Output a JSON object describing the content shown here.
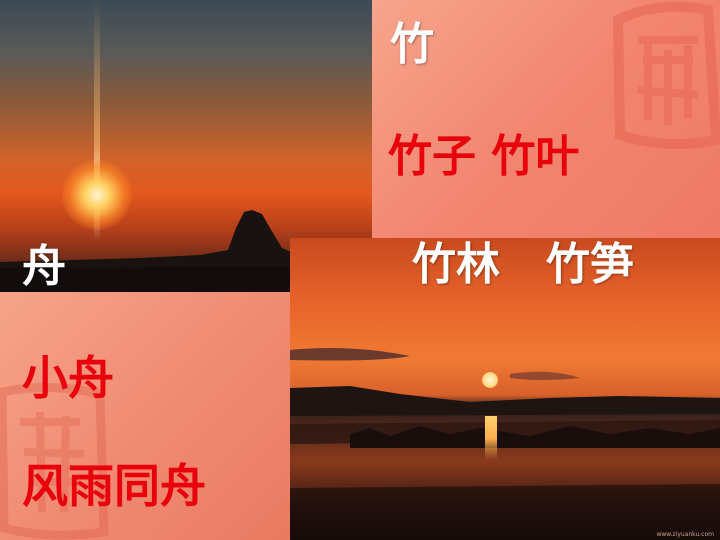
{
  "slide": {
    "word_zhu": "竹",
    "line_zhu_1": "竹子 竹叶",
    "line_zhu_2": "竹林   竹笋",
    "word_zhou": "舟",
    "line_zhou_1": "小舟",
    "line_zhou_2": "风雨同舟",
    "credit": "www.ziyuanku.com"
  },
  "colors": {
    "red_text": "#e8000a",
    "white_text": "#ffffff",
    "pink_panel": "#f28570"
  },
  "decorations": {
    "top_right_seal": "seal-stamp",
    "bottom_left_seal": "seal-stamp"
  }
}
